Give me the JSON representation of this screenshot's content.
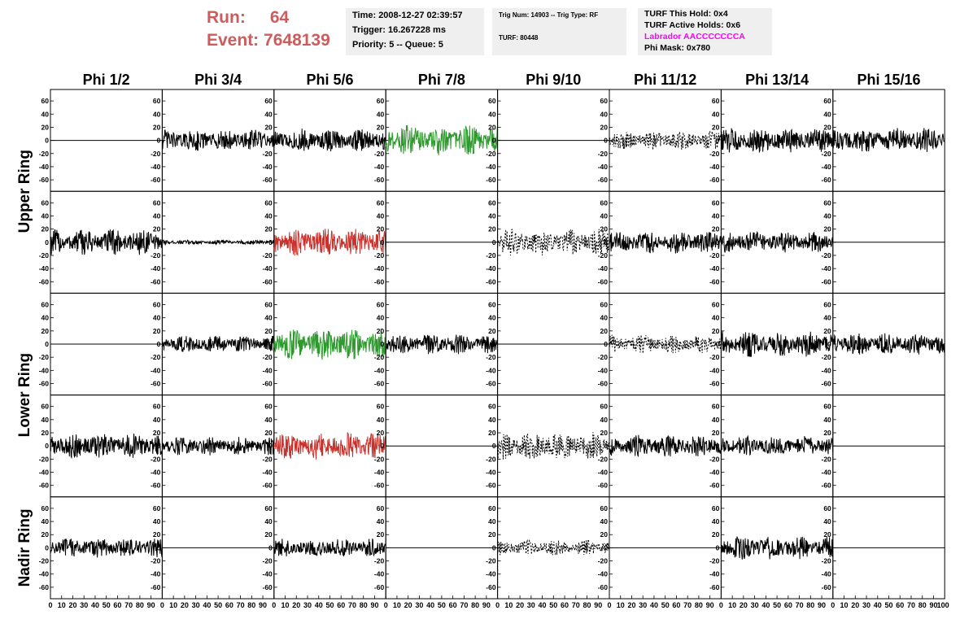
{
  "header": {
    "run_label": "Run:",
    "run_value": "64",
    "event_label": "Event:",
    "event_value": "7648139",
    "time": "Time: 2008-12-27 02:39:57",
    "trigger": "Trigger: 16.267228 ms",
    "priority": "Priority: 5 -- Queue: 5",
    "trig_num": "Trig Num: 14903 -- Trig Type: RF",
    "turf": "TURF: 80448",
    "turf_hold": "TURF This Hold: 0x4",
    "turf_active": "TURF Active Holds: 0x6",
    "labrador": "Labrador AACCCCCCCA",
    "phi_mask": "Phi Mask: 0x780",
    "labrador_color": "#ff00ff",
    "run_color": "#cd5c5c",
    "box_color": "#efefef"
  },
  "chart_data": {
    "type": "line",
    "columns": [
      "Phi 1/2",
      "Phi 3/4",
      "Phi 5/6",
      "Phi 7/8",
      "Phi 9/10",
      "Phi 11/12",
      "Phi 13/14",
      "Phi 15/16"
    ],
    "ring_labels": [
      "Upper Ring",
      "Lower Ring",
      "Nadir Ring"
    ],
    "ylim": [
      -70,
      70
    ],
    "yticks": [
      -60,
      -40,
      -20,
      0,
      20,
      40,
      60
    ],
    "xlim": [
      0,
      100
    ],
    "xticks": [
      0,
      10,
      20,
      30,
      40,
      50,
      60,
      70,
      80,
      90
    ],
    "last_xtick": "100",
    "style_colors": {
      "flat": "#000000",
      "solid": "#000000",
      "dashed": "#000000",
      "green": "#2e9a2e",
      "red": "#c8322d",
      "small": "#000000"
    },
    "waveforms": [
      [
        {
          "s": "flat",
          "a": 0
        },
        {
          "s": "solid",
          "a": 14
        },
        {
          "s": "solid",
          "a": 15
        },
        {
          "s": "green",
          "a": 20
        },
        {
          "s": "flat",
          "a": 0
        },
        {
          "s": "dashed",
          "a": 12
        },
        {
          "s": "solid",
          "a": 16
        },
        {
          "s": "solid",
          "a": 16
        }
      ],
      [
        {
          "s": "solid",
          "a": 17
        },
        {
          "s": "small",
          "a": 3
        },
        {
          "s": "red",
          "a": 18
        },
        {
          "s": "flat",
          "a": 0
        },
        {
          "s": "dashed",
          "a": 17
        },
        {
          "s": "solid",
          "a": 15
        },
        {
          "s": "solid",
          "a": 14
        },
        {
          "s": "flat",
          "a": 0
        }
      ],
      [
        {
          "s": "flat",
          "a": 0
        },
        {
          "s": "solid",
          "a": 11
        },
        {
          "s": "green",
          "a": 20
        },
        {
          "s": "solid",
          "a": 13
        },
        {
          "s": "flat",
          "a": 0
        },
        {
          "s": "dashed",
          "a": 12
        },
        {
          "s": "solid",
          "a": 17
        },
        {
          "s": "solid",
          "a": 14
        }
      ],
      [
        {
          "s": "solid",
          "a": 16
        },
        {
          "s": "solid",
          "a": 12
        },
        {
          "s": "red",
          "a": 18
        },
        {
          "s": "flat",
          "a": 0
        },
        {
          "s": "dashed",
          "a": 18
        },
        {
          "s": "solid",
          "a": 14
        },
        {
          "s": "solid",
          "a": 13
        },
        {
          "s": "flat",
          "a": 0
        }
      ],
      [
        {
          "s": "solid",
          "a": 13
        },
        {
          "s": "flat",
          "a": 0
        },
        {
          "s": "solid",
          "a": 12
        },
        {
          "s": "flat",
          "a": 0
        },
        {
          "s": "dashed",
          "a": 10
        },
        {
          "s": "flat",
          "a": 0
        },
        {
          "s": "solid",
          "a": 15
        },
        {
          "s": "flat",
          "a": 0
        }
      ]
    ]
  }
}
